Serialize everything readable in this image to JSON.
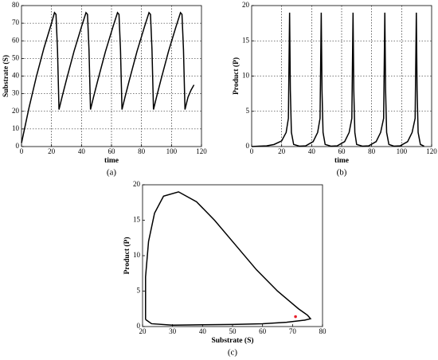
{
  "chart_data": [
    {
      "type": "line",
      "caption": "(a)",
      "xlabel": "time",
      "ylabel": "Substrate (S)",
      "x": [
        0,
        5,
        10,
        15,
        20,
        22,
        23,
        24,
        25,
        27,
        30,
        35,
        40,
        43,
        44,
        45,
        46,
        48,
        51,
        56,
        61,
        64,
        65,
        66,
        67,
        69,
        72,
        77,
        82,
        85,
        86,
        87,
        88,
        90,
        93,
        98,
        103,
        106,
        107,
        108,
        109,
        111,
        113,
        115
      ],
      "values": [
        2,
        22,
        40,
        56,
        70,
        76,
        75,
        55,
        21,
        28,
        38,
        54,
        68,
        76,
        75,
        55,
        21,
        28,
        38,
        54,
        68,
        76,
        75,
        55,
        21,
        28,
        38,
        54,
        68,
        76,
        75,
        55,
        21,
        28,
        38,
        54,
        68,
        76,
        75,
        55,
        21,
        28,
        32,
        35
      ],
      "color": "#000000",
      "xlim": [
        0,
        120
      ],
      "xticks": [
        0,
        20,
        40,
        60,
        80,
        100,
        120
      ],
      "ylim": [
        0,
        80
      ],
      "yticks": [
        0,
        10,
        20,
        30,
        40,
        50,
        60,
        70,
        80
      ],
      "grid": true
    },
    {
      "type": "line",
      "caption": "(b)",
      "xlabel": "time",
      "ylabel": "Product (P)",
      "x": [
        0,
        5,
        10,
        15,
        20,
        23,
        24.5,
        25.3,
        25.8,
        26.5,
        28,
        32,
        36,
        41,
        44,
        45.6,
        46.4,
        46.9,
        47.6,
        49,
        53,
        57,
        62,
        65,
        66.8,
        67.6,
        68.1,
        68.8,
        70,
        74,
        78,
        83,
        86,
        88,
        88.8,
        89.3,
        90,
        91.5,
        95,
        99,
        104,
        107,
        109,
        109.8,
        110.3,
        111,
        112.5,
        115
      ],
      "values": [
        0,
        0.05,
        0.1,
        0.3,
        0.8,
        2,
        4,
        19,
        8,
        2,
        0.3,
        0.05,
        0.1,
        0.7,
        2,
        4,
        19,
        8,
        2,
        0.3,
        0.05,
        0.1,
        0.7,
        2,
        4,
        19,
        8,
        2,
        0.3,
        0.05,
        0.1,
        0.7,
        2,
        4,
        19,
        8,
        2,
        0.3,
        0.05,
        0.1,
        0.7,
        2,
        4,
        19,
        8,
        2,
        0.3,
        0.05
      ],
      "color": "#000000",
      "xlim": [
        0,
        120
      ],
      "xticks": [
        0,
        20,
        40,
        60,
        80,
        100,
        120
      ],
      "ylim": [
        0,
        20
      ],
      "yticks": [
        0,
        5,
        10,
        15,
        20
      ],
      "grid": true
    },
    {
      "type": "line",
      "caption": "(c)",
      "xlabel": "Substrate (S)",
      "ylabel": "Product (P)",
      "x": [
        21,
        23,
        30,
        40,
        50,
        60,
        68,
        74,
        76,
        75,
        72,
        65,
        58,
        50,
        44,
        38,
        32,
        27,
        24,
        22,
        21,
        21,
        21
      ],
      "values": [
        1,
        0.4,
        0.2,
        0.25,
        0.3,
        0.4,
        0.6,
        0.9,
        1.1,
        1.6,
        2.5,
        5,
        8,
        12,
        15,
        17.6,
        19,
        18.4,
        16,
        12,
        7,
        3,
        1
      ],
      "color": "#000000",
      "xlim": [
        20,
        80
      ],
      "xticks": [
        20,
        30,
        40,
        50,
        60,
        70,
        80
      ],
      "ylim": [
        0,
        20
      ],
      "yticks": [
        0,
        5,
        10,
        15,
        20
      ],
      "grid": false,
      "marker": {
        "x": 71,
        "y": 1.4,
        "color": "#e8202a"
      }
    }
  ]
}
